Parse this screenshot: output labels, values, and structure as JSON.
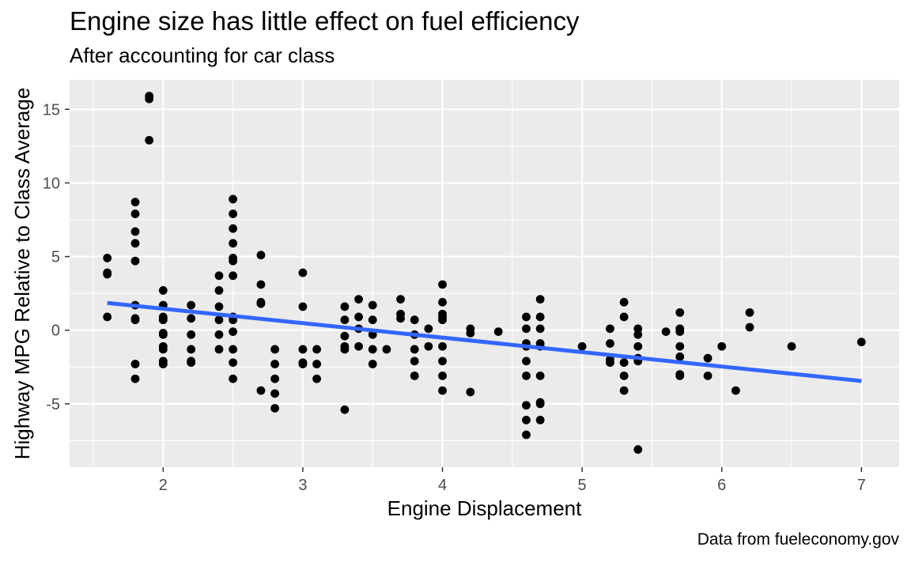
{
  "chart_data": {
    "type": "scatter",
    "title": "Engine size has little effect on fuel efficiency",
    "subtitle": "After accounting for car class",
    "caption": "Data from fueleconomy.gov",
    "xlabel": "Engine Displacement",
    "ylabel": "Highway MPG Relative to Class Average",
    "xlim": [
      1.33,
      7.27
    ],
    "ylim": [
      -9.3,
      17.0
    ],
    "x_ticks": [
      2,
      3,
      4,
      5,
      6,
      7
    ],
    "y_ticks": [
      -5,
      0,
      5,
      10,
      15
    ],
    "grid": true,
    "background": "#ebebeb",
    "point_color": "#000000",
    "trend_line": {
      "color": "#3366ff",
      "x": [
        1.6,
        7.0
      ],
      "y": [
        1.85,
        -3.45
      ]
    },
    "points": [
      [
        1.6,
        4.9
      ],
      [
        1.6,
        3.9
      ],
      [
        1.6,
        3.8
      ],
      [
        1.6,
        0.9
      ],
      [
        1.8,
        8.7
      ],
      [
        1.8,
        7.9
      ],
      [
        1.8,
        6.7
      ],
      [
        1.8,
        5.9
      ],
      [
        1.8,
        4.7
      ],
      [
        1.8,
        1.7
      ],
      [
        1.8,
        0.8
      ],
      [
        1.8,
        0.7
      ],
      [
        1.8,
        -2.3
      ],
      [
        1.8,
        -3.3
      ],
      [
        1.9,
        15.9
      ],
      [
        1.9,
        15.7
      ],
      [
        1.9,
        12.9
      ],
      [
        2.0,
        2.7
      ],
      [
        2.0,
        1.7
      ],
      [
        2.0,
        0.9
      ],
      [
        2.0,
        0.8
      ],
      [
        2.0,
        0.7
      ],
      [
        2.0,
        -0.2
      ],
      [
        2.0,
        -0.3
      ],
      [
        2.0,
        -1.1
      ],
      [
        2.0,
        -1.3
      ],
      [
        2.0,
        -2.1
      ],
      [
        2.0,
        -2.3
      ],
      [
        2.2,
        1.7
      ],
      [
        2.2,
        0.8
      ],
      [
        2.2,
        -0.3
      ],
      [
        2.2,
        -1.3
      ],
      [
        2.2,
        -2.1
      ],
      [
        2.2,
        -2.2
      ],
      [
        2.4,
        3.7
      ],
      [
        2.4,
        2.7
      ],
      [
        2.4,
        1.6
      ],
      [
        2.4,
        0.7
      ],
      [
        2.4,
        -0.3
      ],
      [
        2.4,
        -1.3
      ],
      [
        2.5,
        8.9
      ],
      [
        2.5,
        7.9
      ],
      [
        2.5,
        6.9
      ],
      [
        2.5,
        5.9
      ],
      [
        2.5,
        4.9
      ],
      [
        2.5,
        4.7
      ],
      [
        2.5,
        3.7
      ],
      [
        2.5,
        0.9
      ],
      [
        2.5,
        0.7
      ],
      [
        2.5,
        -0.1
      ],
      [
        2.5,
        -1.3
      ],
      [
        2.5,
        -2.2
      ],
      [
        2.5,
        -3.3
      ],
      [
        2.7,
        5.1
      ],
      [
        2.7,
        3.1
      ],
      [
        2.7,
        1.9
      ],
      [
        2.7,
        1.8
      ],
      [
        2.7,
        -4.1
      ],
      [
        2.8,
        -1.3
      ],
      [
        2.8,
        -2.3
      ],
      [
        2.8,
        -3.3
      ],
      [
        2.8,
        -4.3
      ],
      [
        2.8,
        -5.3
      ],
      [
        3.0,
        3.9
      ],
      [
        3.0,
        1.6
      ],
      [
        3.0,
        -1.3
      ],
      [
        3.0,
        -2.2
      ],
      [
        3.0,
        -2.3
      ],
      [
        3.1,
        -1.3
      ],
      [
        3.1,
        -2.3
      ],
      [
        3.1,
        -3.3
      ],
      [
        3.3,
        1.6
      ],
      [
        3.3,
        0.7
      ],
      [
        3.3,
        -0.4
      ],
      [
        3.3,
        -1.1
      ],
      [
        3.3,
        -1.3
      ],
      [
        3.3,
        -5.4
      ],
      [
        3.4,
        2.1
      ],
      [
        3.4,
        0.9
      ],
      [
        3.4,
        0.1
      ],
      [
        3.4,
        -1.1
      ],
      [
        3.5,
        1.7
      ],
      [
        3.5,
        0.7
      ],
      [
        3.5,
        -0.3
      ],
      [
        3.5,
        -1.3
      ],
      [
        3.5,
        -2.3
      ],
      [
        3.6,
        -1.3
      ],
      [
        3.7,
        2.1
      ],
      [
        3.7,
        1.1
      ],
      [
        3.7,
        0.8
      ],
      [
        3.8,
        0.7
      ],
      [
        3.8,
        -0.3
      ],
      [
        3.8,
        -1.3
      ],
      [
        3.8,
        -2.1
      ],
      [
        3.8,
        -3.1
      ],
      [
        3.9,
        0.1
      ],
      [
        3.9,
        -1.1
      ],
      [
        4.0,
        3.1
      ],
      [
        4.0,
        1.9
      ],
      [
        4.0,
        1.1
      ],
      [
        4.0,
        0.9
      ],
      [
        4.0,
        0.7
      ],
      [
        4.0,
        -1.1
      ],
      [
        4.0,
        -2.1
      ],
      [
        4.0,
        -3.1
      ],
      [
        4.0,
        -4.1
      ],
      [
        4.2,
        0.1
      ],
      [
        4.2,
        -0.2
      ],
      [
        4.2,
        -4.2
      ],
      [
        4.4,
        -0.1
      ],
      [
        4.6,
        0.9
      ],
      [
        4.6,
        0.1
      ],
      [
        4.6,
        -0.9
      ],
      [
        4.6,
        -1.1
      ],
      [
        4.6,
        -2.1
      ],
      [
        4.6,
        -3.1
      ],
      [
        4.6,
        -5.1
      ],
      [
        4.6,
        -6.1
      ],
      [
        4.6,
        -7.1
      ],
      [
        4.7,
        2.1
      ],
      [
        4.7,
        0.9
      ],
      [
        4.7,
        0.1
      ],
      [
        4.7,
        -0.9
      ],
      [
        4.7,
        -1.1
      ],
      [
        4.7,
        -3.1
      ],
      [
        4.7,
        -4.9
      ],
      [
        4.7,
        -5.0
      ],
      [
        4.7,
        -6.1
      ],
      [
        5.0,
        -1.1
      ],
      [
        5.2,
        0.1
      ],
      [
        5.2,
        -0.9
      ],
      [
        5.2,
        -2.0
      ],
      [
        5.2,
        -2.2
      ],
      [
        5.3,
        1.9
      ],
      [
        5.3,
        0.9
      ],
      [
        5.3,
        -2.2
      ],
      [
        5.3,
        -3.1
      ],
      [
        5.3,
        -4.1
      ],
      [
        5.4,
        0.1
      ],
      [
        5.4,
        -0.3
      ],
      [
        5.4,
        -1.1
      ],
      [
        5.4,
        -1.9
      ],
      [
        5.4,
        -2.1
      ],
      [
        5.4,
        -8.1
      ],
      [
        5.6,
        -0.1
      ],
      [
        5.7,
        1.2
      ],
      [
        5.7,
        0.1
      ],
      [
        5.7,
        -0.1
      ],
      [
        5.7,
        -1.1
      ],
      [
        5.7,
        -1.8
      ],
      [
        5.7,
        -3.0
      ],
      [
        5.7,
        -3.1
      ],
      [
        5.9,
        -1.9
      ],
      [
        5.9,
        -3.1
      ],
      [
        6.0,
        -1.1
      ],
      [
        6.1,
        -4.1
      ],
      [
        6.2,
        1.2
      ],
      [
        6.2,
        0.2
      ],
      [
        6.5,
        -1.1
      ],
      [
        7.0,
        -0.8
      ]
    ]
  }
}
